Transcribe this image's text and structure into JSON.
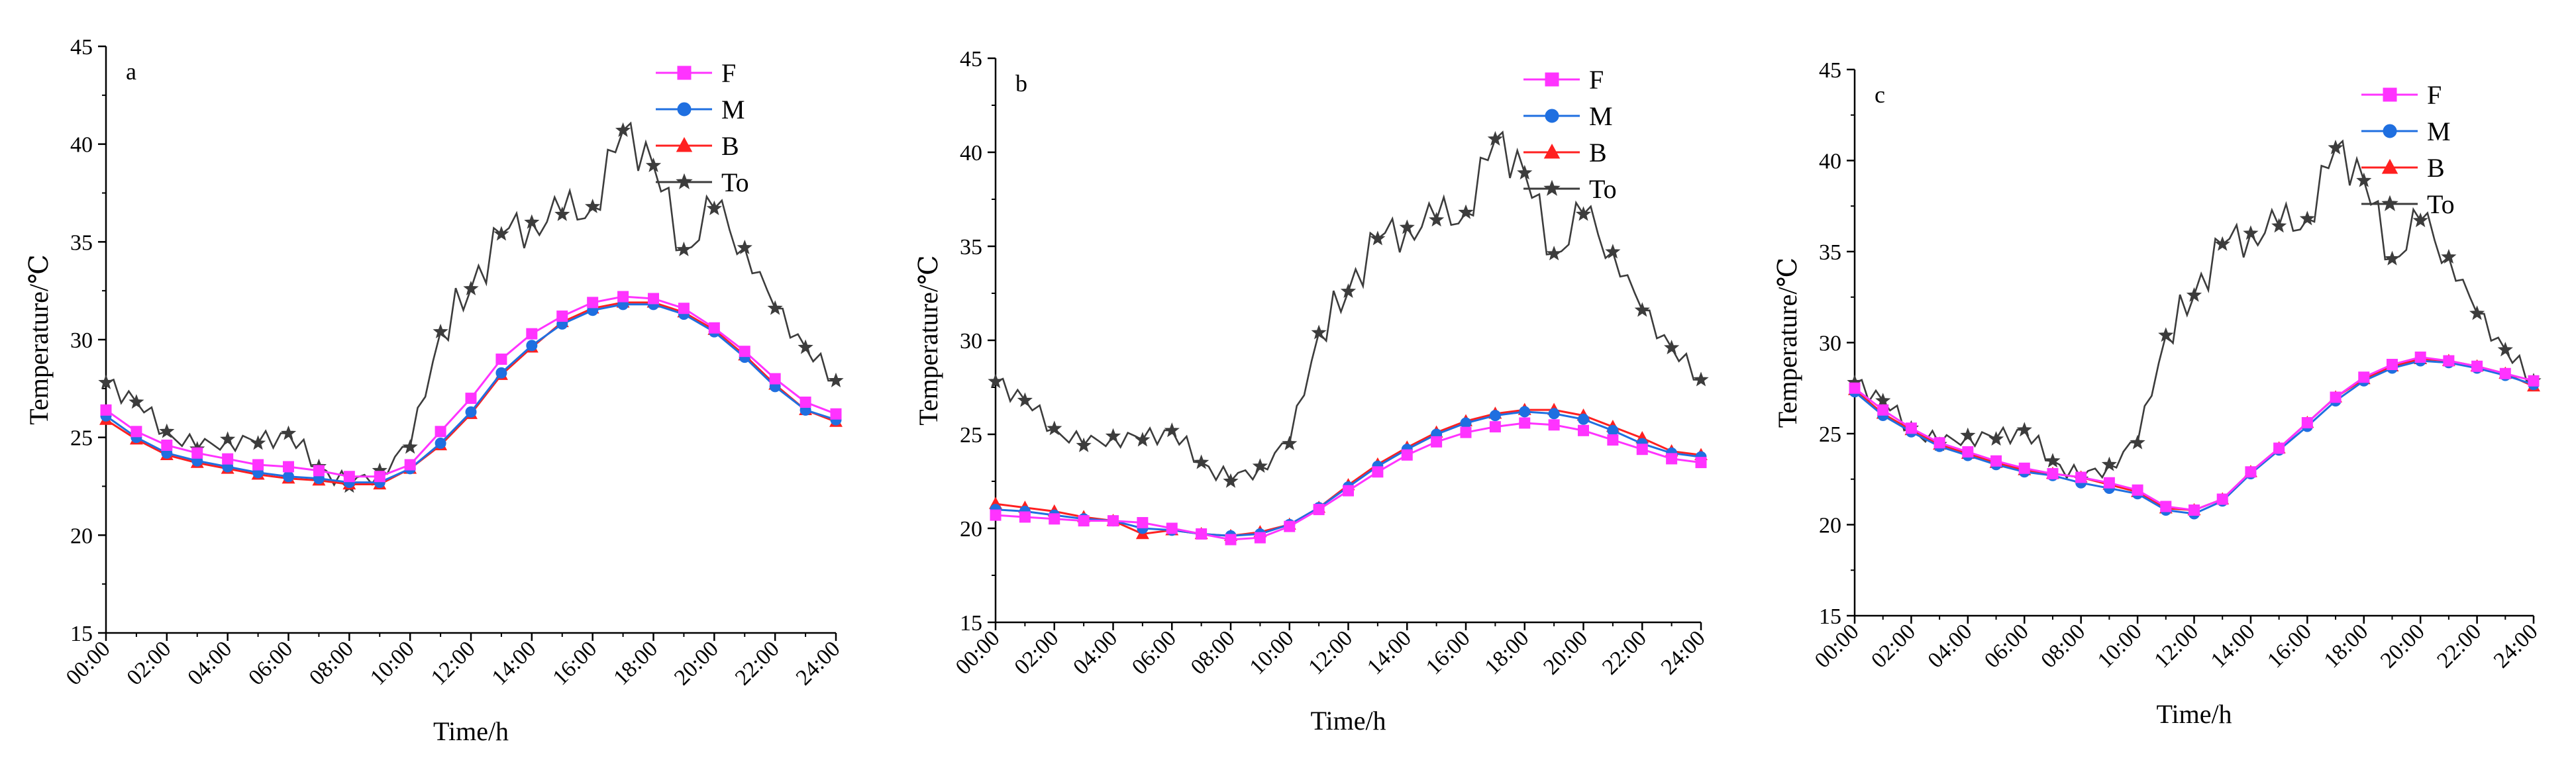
{
  "colors": {
    "F": "#ff33ff",
    "M": "#1f6fe0",
    "B": "#ff2020",
    "To": "#3c3c3c"
  },
  "marker_shapes": {
    "F": "square",
    "M": "circle",
    "B": "triangle",
    "To": "star"
  },
  "chart_data": [
    {
      "type": "line",
      "panel_letter": "a",
      "xlabel": "Time/h",
      "ylabel": "Temperature/℃",
      "x_ticks": [
        "00:00",
        "02:00",
        "04:00",
        "06:00",
        "08:00",
        "10:00",
        "12:00",
        "14:00",
        "16:00",
        "18:00",
        "20:00",
        "22:00",
        "24:00"
      ],
      "x_hours": [
        0,
        1,
        2,
        3,
        4,
        5,
        6,
        7,
        8,
        9,
        10,
        11,
        12,
        13,
        14,
        15,
        16,
        17,
        18,
        19,
        20,
        21,
        22,
        23,
        24
      ],
      "ylim": [
        15,
        45
      ],
      "y_ticks": [
        15,
        20,
        25,
        30,
        35,
        40,
        45
      ],
      "legend_position": "top-right",
      "series": [
        {
          "name": "F",
          "values": [
            26.4,
            25.3,
            24.6,
            24.2,
            23.9,
            23.6,
            23.5,
            23.3,
            23.0,
            23.0,
            23.6,
            25.3,
            27.0,
            29.0,
            30.3,
            31.2,
            31.9,
            32.2,
            32.1,
            31.6,
            30.6,
            29.4,
            28.0,
            26.8,
            26.2
          ]
        },
        {
          "name": "M",
          "values": [
            26.1,
            25.0,
            24.2,
            23.8,
            23.5,
            23.2,
            23.0,
            22.9,
            22.7,
            22.7,
            23.4,
            24.7,
            26.3,
            28.3,
            29.7,
            30.8,
            31.5,
            31.8,
            31.8,
            31.3,
            30.4,
            29.1,
            27.6,
            26.4,
            25.9
          ]
        },
        {
          "name": "B",
          "values": [
            25.9,
            24.9,
            24.1,
            23.7,
            23.4,
            23.1,
            22.9,
            22.8,
            22.6,
            22.6,
            23.4,
            24.6,
            26.2,
            28.2,
            29.6,
            30.9,
            31.6,
            31.9,
            31.9,
            31.4,
            30.5,
            29.2,
            27.7,
            26.4,
            25.8
          ]
        },
        {
          "name": "To",
          "values": [
            27.8,
            26.8,
            25.3,
            24.4,
            24.9,
            24.7,
            25.2,
            23.5,
            22.5,
            23.3,
            24.5,
            30.4,
            32.6,
            35.4,
            36.0,
            36.4,
            36.8,
            40.7,
            38.9,
            34.6,
            36.7,
            34.7,
            31.6,
            29.6,
            27.9
          ]
        }
      ]
    },
    {
      "type": "line",
      "panel_letter": "b",
      "xlabel": "Time/h",
      "ylabel": "Temperature/℃",
      "x_ticks": [
        "00:00",
        "02:00",
        "04:00",
        "06:00",
        "08:00",
        "10:00",
        "12:00",
        "14:00",
        "16:00",
        "18:00",
        "20:00",
        "22:00",
        "24:00"
      ],
      "x_hours": [
        0,
        1,
        2,
        3,
        4,
        5,
        6,
        7,
        8,
        9,
        10,
        11,
        12,
        13,
        14,
        15,
        16,
        17,
        18,
        19,
        20,
        21,
        22,
        23,
        24
      ],
      "ylim": [
        15,
        45
      ],
      "y_ticks": [
        15,
        20,
        25,
        30,
        35,
        40,
        45
      ],
      "legend_position": "top-right",
      "series": [
        {
          "name": "F",
          "values": [
            20.7,
            20.6,
            20.5,
            20.4,
            20.4,
            20.3,
            20.0,
            19.7,
            19.4,
            19.5,
            20.1,
            21.0,
            22.0,
            23.0,
            23.9,
            24.6,
            25.1,
            25.4,
            25.6,
            25.5,
            25.2,
            24.7,
            24.2,
            23.7,
            23.5
          ]
        },
        {
          "name": "M",
          "values": [
            21.0,
            20.9,
            20.7,
            20.5,
            20.4,
            20.0,
            19.9,
            19.7,
            19.6,
            19.7,
            20.2,
            21.1,
            22.2,
            23.3,
            24.2,
            25.0,
            25.6,
            26.0,
            26.2,
            26.1,
            25.8,
            25.2,
            24.5,
            24.0,
            23.8
          ]
        },
        {
          "name": "B",
          "values": [
            21.3,
            21.1,
            20.9,
            20.6,
            20.4,
            19.7,
            19.9,
            19.7,
            19.6,
            19.8,
            20.2,
            21.1,
            22.3,
            23.4,
            24.3,
            25.1,
            25.7,
            26.1,
            26.3,
            26.3,
            26.0,
            25.4,
            24.8,
            24.1,
            23.9
          ]
        },
        {
          "name": "To",
          "values": [
            27.8,
            26.8,
            25.3,
            24.4,
            24.9,
            24.7,
            25.2,
            23.5,
            22.5,
            23.3,
            24.5,
            30.4,
            32.6,
            35.4,
            36.0,
            36.4,
            36.8,
            40.7,
            38.9,
            34.6,
            36.7,
            34.7,
            31.6,
            29.6,
            27.9
          ]
        }
      ]
    },
    {
      "type": "line",
      "panel_letter": "c",
      "xlabel": "Time/h",
      "ylabel": "Temperature/℃",
      "x_ticks": [
        "00:00",
        "02:00",
        "04:00",
        "06:00",
        "08:00",
        "10:00",
        "12:00",
        "14:00",
        "16:00",
        "18:00",
        "20:00",
        "22:00",
        "24:00"
      ],
      "x_hours": [
        0,
        1,
        2,
        3,
        4,
        5,
        6,
        7,
        8,
        9,
        10,
        11,
        12,
        13,
        14,
        15,
        16,
        17,
        18,
        19,
        20,
        21,
        22,
        23,
        24
      ],
      "ylim": [
        15,
        45
      ],
      "y_ticks": [
        15,
        20,
        25,
        30,
        35,
        40,
        45
      ],
      "legend_position": "top-right",
      "series": [
        {
          "name": "F",
          "values": [
            27.5,
            26.3,
            25.3,
            24.5,
            24.0,
            23.5,
            23.1,
            22.8,
            22.6,
            22.3,
            21.9,
            21.0,
            20.8,
            21.4,
            22.9,
            24.2,
            25.6,
            27.0,
            28.1,
            28.8,
            29.2,
            29.0,
            28.7,
            28.3,
            27.9
          ]
        },
        {
          "name": "M",
          "values": [
            27.3,
            26.0,
            25.1,
            24.3,
            23.8,
            23.3,
            22.9,
            22.7,
            22.3,
            22.0,
            21.7,
            20.8,
            20.6,
            21.3,
            22.8,
            24.1,
            25.4,
            26.8,
            27.9,
            28.6,
            29.0,
            28.9,
            28.6,
            28.2,
            27.7
          ]
        },
        {
          "name": "B",
          "values": [
            27.4,
            26.1,
            25.2,
            24.4,
            23.9,
            23.4,
            23.0,
            22.8,
            22.6,
            22.2,
            21.8,
            20.9,
            20.8,
            21.4,
            22.9,
            24.2,
            25.6,
            27.0,
            28.0,
            28.7,
            29.1,
            29.0,
            28.7,
            28.3,
            27.6
          ]
        },
        {
          "name": "To",
          "values": [
            27.8,
            26.8,
            25.3,
            24.4,
            24.9,
            24.7,
            25.2,
            23.5,
            22.5,
            23.3,
            24.5,
            30.4,
            32.6,
            35.4,
            36.0,
            36.4,
            36.8,
            40.7,
            38.9,
            34.6,
            36.7,
            34.7,
            31.6,
            29.6,
            27.9
          ]
        }
      ]
    }
  ]
}
